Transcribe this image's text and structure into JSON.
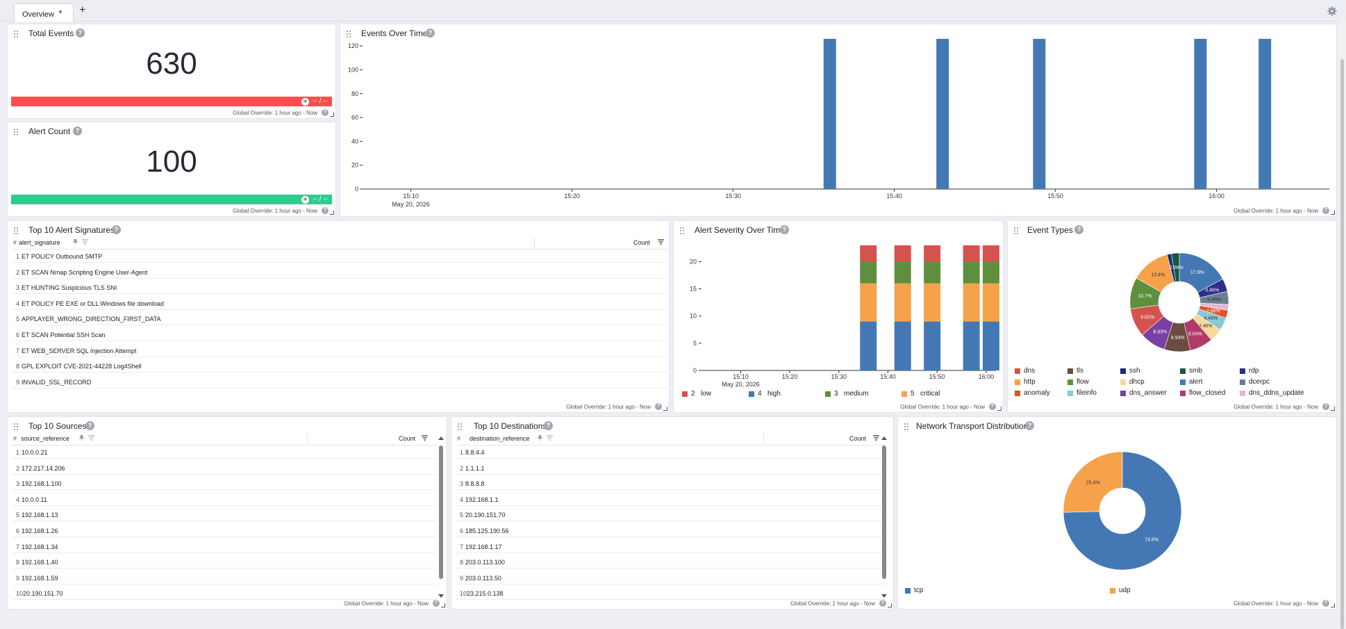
{
  "tabs": {
    "overview": "Overview"
  },
  "footer_text": "Global Override: 1 hour ago - Now",
  "total_events": {
    "title": "Total Events",
    "value": "630",
    "range": "-- / --",
    "color": "#ff4d4f"
  },
  "alert_count": {
    "title": "Alert Count",
    "value": "100",
    "range": "-- / --",
    "color": "#2ecc8f"
  },
  "events_over_time": {
    "title": "Events Over Time",
    "date_label": "May 20, 2026",
    "chart_data": {
      "type": "bar",
      "color": "#4478b4",
      "ylim": [
        0,
        130
      ],
      "yticks": [
        "0",
        "20",
        "40",
        "60",
        "80",
        "100",
        "120"
      ],
      "xticks": [
        "15:10",
        "15:20",
        "15:30",
        "15:40",
        "15:50",
        "16:00"
      ],
      "x": [
        "15:36",
        "15:43",
        "15:49",
        "15:59",
        "16:03"
      ],
      "values": [
        126,
        126,
        126,
        126,
        126
      ]
    }
  },
  "alert_signatures": {
    "title": "Top 10 Alert Signatures",
    "col_name": "alert_signature",
    "col_count": "Count",
    "rows": [
      {
        "i": "1",
        "v": "ET POLICY Outbound SMTP"
      },
      {
        "i": "2",
        "v": "ET SCAN Nmap Scripting Engine User-Agent"
      },
      {
        "i": "3",
        "v": "ET HUNTING Suspicious TLS SNI"
      },
      {
        "i": "4",
        "v": "ET POLICY PE EXE or DLL Windows file download"
      },
      {
        "i": "5",
        "v": "APPLAYER_WRONG_DIRECTION_FIRST_DATA"
      },
      {
        "i": "6",
        "v": "ET SCAN Potential SSH Scan"
      },
      {
        "i": "7",
        "v": "ET WEB_SERVER SQL Injection Attempt"
      },
      {
        "i": "8",
        "v": "GPL EXPLOIT CVE-2021-44228 Log4Shell"
      },
      {
        "i": "9",
        "v": "INVALID_SSL_RECORD"
      }
    ]
  },
  "alert_severity": {
    "title": "Alert Severity Over Time",
    "date_label": "May 20, 2026",
    "chart_data": {
      "type": "bar",
      "stacked": true,
      "ylim": [
        0,
        23
      ],
      "yticks": [
        "0",
        "5",
        "10",
        "15",
        "20"
      ],
      "xticks": [
        "15:10",
        "15:20",
        "15:30",
        "15:40",
        "15:50",
        "16:00"
      ],
      "x": [
        "15:36",
        "15:43",
        "15:49",
        "15:57",
        "16:01"
      ],
      "series": [
        {
          "name": "high",
          "code": "4",
          "color": "#4478b4",
          "values": [
            9,
            9,
            9,
            9,
            9
          ]
        },
        {
          "name": "critical",
          "code": "5",
          "color": "#f5a24b",
          "values": [
            7,
            7,
            7,
            7,
            7
          ]
        },
        {
          "name": "medium",
          "code": "3",
          "color": "#5e8f3d",
          "values": [
            4,
            4,
            4,
            4,
            4
          ]
        },
        {
          "name": "low",
          "code": "2",
          "color": "#d5534e",
          "values": [
            3,
            3,
            3,
            3,
            3
          ]
        }
      ],
      "legend": [
        {
          "code": "2",
          "name": "low",
          "color": "#d5534e"
        },
        {
          "code": "4",
          "name": "high",
          "color": "#4478b4"
        },
        {
          "code": "3",
          "name": "medium",
          "color": "#5e8f3d"
        },
        {
          "code": "5",
          "name": "critical",
          "color": "#f5a24b"
        }
      ]
    }
  },
  "event_types": {
    "title": "Event Types",
    "chart_data": {
      "type": "pie",
      "donut": true,
      "slices": [
        {
          "name": "alert",
          "value": 17.9,
          "label": "17.9%",
          "color": "#4478b4"
        },
        {
          "name": "rdp",
          "value": 4.46,
          "label": "4.46%",
          "color": "#2f2e86"
        },
        {
          "name": "dcerpc",
          "value": 4.46,
          "label": "4.46%",
          "color": "#6b7f91"
        },
        {
          "name": "dns_ddns_update",
          "value": 2.0,
          "label": "",
          "color": "#e1b8dc"
        },
        {
          "name": "anomaly",
          "value": 2.68,
          "label": "2.68%",
          "color": "#e2531d"
        },
        {
          "name": "fileinfo",
          "value": 4.46,
          "label": "4.46%",
          "color": "#8cc9d3"
        },
        {
          "name": "dhcp",
          "value": 4.46,
          "label": "4.46%",
          "color": "#f8d89a"
        },
        {
          "name": "flow_closed",
          "value": 8.04,
          "label": "8.04%",
          "color": "#b13c6b"
        },
        {
          "name": "tls",
          "value": 8.93,
          "label": "8.93%",
          "color": "#6b4c40"
        },
        {
          "name": "dns_answer",
          "value": 8.93,
          "label": "8.93%",
          "color": "#7a3fa3"
        },
        {
          "name": "dns",
          "value": 9.82,
          "label": "9.82%",
          "color": "#d5534e"
        },
        {
          "name": "flow",
          "value": 10.7,
          "label": "10.7%",
          "color": "#5e8f3d"
        },
        {
          "name": "http",
          "value": 13.4,
          "label": "13.4%",
          "color": "#f5a24b"
        },
        {
          "name": "ssh",
          "value": 1.5,
          "label": "",
          "color": "#1e2d7a"
        },
        {
          "name": "smb",
          "value": 2.68,
          "label": "2.68%",
          "color": "#0f5a3f"
        }
      ],
      "legend": [
        {
          "name": "dns",
          "color": "#d5534e"
        },
        {
          "name": "tls",
          "color": "#6b4c40"
        },
        {
          "name": "ssh",
          "color": "#1e2d7a"
        },
        {
          "name": "smb",
          "color": "#0f5a3f"
        },
        {
          "name": "rdp",
          "color": "#2f2e86"
        },
        {
          "name": "http",
          "color": "#f5a24b"
        },
        {
          "name": "flow",
          "color": "#5e8f3d"
        },
        {
          "name": "dhcp",
          "color": "#f8d89a"
        },
        {
          "name": "alert",
          "color": "#4478b4"
        },
        {
          "name": "dcerpc",
          "color": "#6b7f91"
        },
        {
          "name": "anomaly",
          "color": "#e2531d"
        },
        {
          "name": "fileinfo",
          "color": "#8cc9d3"
        },
        {
          "name": "dns_answer",
          "color": "#7a3fa3"
        },
        {
          "name": "flow_closed",
          "color": "#b13c6b"
        },
        {
          "name": "dns_ddns_update",
          "color": "#e1b8dc"
        }
      ]
    }
  },
  "top_sources": {
    "title": "Top 10 Sources",
    "col_name": "source_reference",
    "col_count": "Count",
    "rows": [
      {
        "i": "1",
        "v": "10.0.0.21"
      },
      {
        "i": "2",
        "v": "172.217.14.206"
      },
      {
        "i": "3",
        "v": "192.168.1.100"
      },
      {
        "i": "4",
        "v": "10.0.0.11"
      },
      {
        "i": "5",
        "v": "192.168.1.13"
      },
      {
        "i": "6",
        "v": "192.168.1.26"
      },
      {
        "i": "7",
        "v": "192.168.1.34"
      },
      {
        "i": "8",
        "v": "192.168.1.40"
      },
      {
        "i": "9",
        "v": "192.168.1.59"
      },
      {
        "i": "10",
        "v": "20.190.151.70"
      }
    ]
  },
  "top_destinations": {
    "title": "Top 10 Destinations",
    "col_name": "destination_reference",
    "col_count": "Count",
    "rows": [
      {
        "i": "1",
        "v": "8.8.4.4"
      },
      {
        "i": "2",
        "v": "1.1.1.1"
      },
      {
        "i": "3",
        "v": "8.8.8.8"
      },
      {
        "i": "4",
        "v": "192.168.1.1"
      },
      {
        "i": "5",
        "v": "20.190.151.70"
      },
      {
        "i": "6",
        "v": "185.125.190.56"
      },
      {
        "i": "7",
        "v": "192.168.1.17"
      },
      {
        "i": "8",
        "v": "203.0.113.100"
      },
      {
        "i": "9",
        "v": "203.0.113.50"
      },
      {
        "i": "10",
        "v": "23.215.0.138"
      }
    ]
  },
  "network_transport": {
    "title": "Network Transport Distribution",
    "chart_data": {
      "type": "pie",
      "donut": true,
      "slices": [
        {
          "name": "tcp",
          "value": 74.6,
          "label": "74.6%",
          "color": "#4478b4"
        },
        {
          "name": "udp",
          "value": 25.4,
          "label": "25.4%",
          "color": "#f5a24b"
        }
      ],
      "legend": [
        {
          "name": "tcp",
          "color": "#4478b4"
        },
        {
          "name": "udp",
          "color": "#f5a24b"
        }
      ]
    }
  }
}
